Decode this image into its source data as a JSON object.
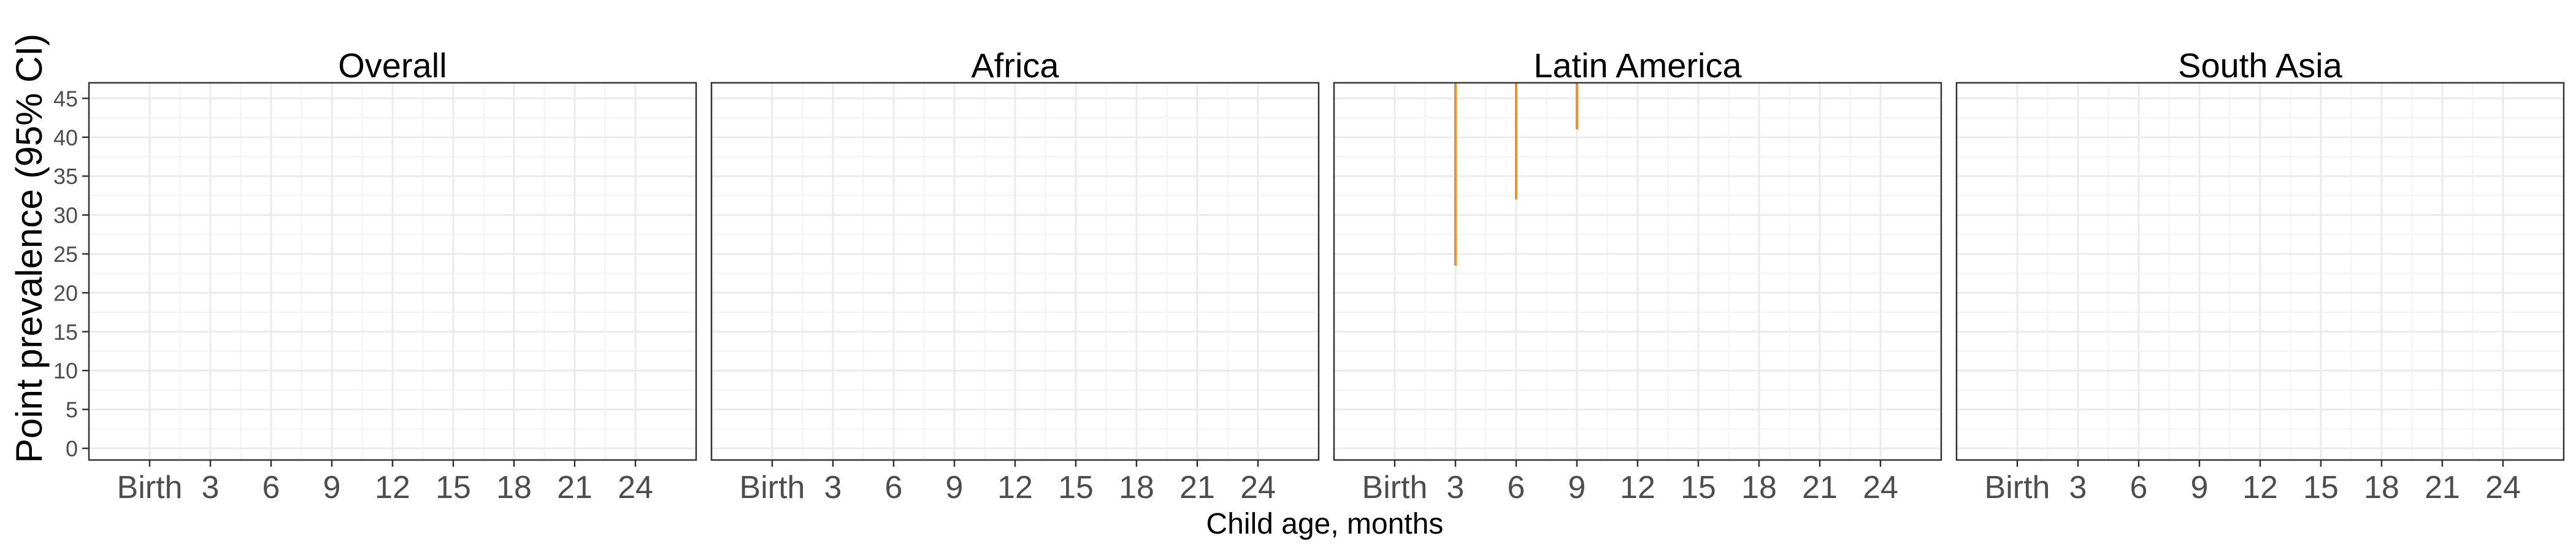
{
  "chart_data": {
    "type": "line",
    "facets": [
      "Overall",
      "Africa",
      "Latin America",
      "South Asia"
    ],
    "xlabel": "Child age, months",
    "ylabel": "Point prevalence (95% CI)",
    "x_ticks": [
      {
        "value": 0,
        "label": "Birth"
      },
      {
        "value": 3,
        "label": "3"
      },
      {
        "value": 6,
        "label": "6"
      },
      {
        "value": 9,
        "label": "9"
      },
      {
        "value": 12,
        "label": "12"
      },
      {
        "value": 15,
        "label": "15"
      },
      {
        "value": 18,
        "label": "18"
      },
      {
        "value": 21,
        "label": "21"
      },
      {
        "value": 24,
        "label": "24"
      }
    ],
    "y_ticks": [
      0,
      5,
      10,
      15,
      20,
      25,
      30,
      35,
      40,
      45
    ],
    "xlim": [
      -3,
      27
    ],
    "ylim": [
      -1.5,
      47
    ],
    "grid": true,
    "legend": "none",
    "series_color": "#f28e2b",
    "error_bars": [
      {
        "facet": "Latin America",
        "x": 3,
        "lower": 23.5,
        "upper": 47
      },
      {
        "facet": "Latin America",
        "x": 6,
        "lower": 32,
        "upper": 47
      },
      {
        "facet": "Latin America",
        "x": 9,
        "lower": 41,
        "upper": 47
      }
    ]
  }
}
